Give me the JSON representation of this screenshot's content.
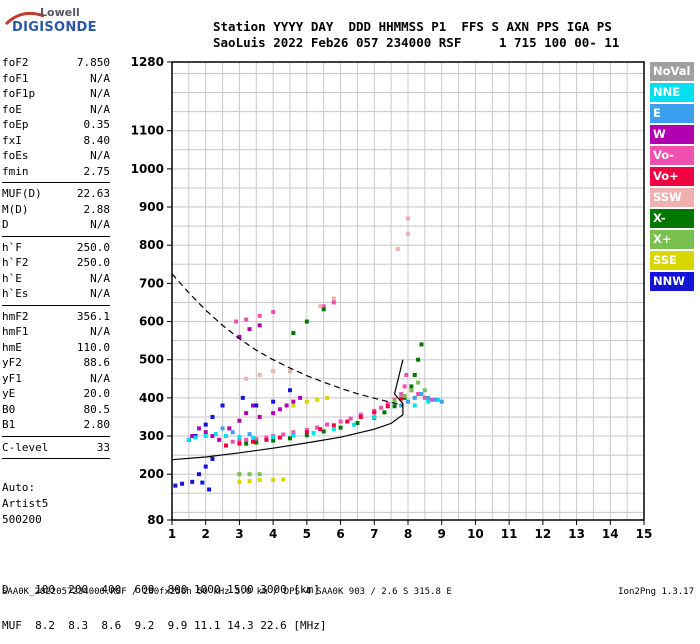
{
  "logo": {
    "top": "Lowell",
    "bottom": "DIGISONDE"
  },
  "header": {
    "line1": "Station YYYY DAY  DDD HHMMSS P1  FFS S AXN PPS IGA PS",
    "line2": "SaoLuis 2022 Feb26 057 234000 RSF     1 715 100 00- 11"
  },
  "params": {
    "group1": [
      {
        "name": "foF2",
        "value": "7.850"
      },
      {
        "name": "foF1",
        "value": "N/A"
      },
      {
        "name": "foF1p",
        "value": "N/A"
      },
      {
        "name": "foE",
        "value": "N/A"
      },
      {
        "name": "foEp",
        "value": "0.35"
      },
      {
        "name": "fxI",
        "value": "8.40"
      },
      {
        "name": "foEs",
        "value": "N/A"
      },
      {
        "name": "fmin",
        "value": "2.75"
      }
    ],
    "group2": [
      {
        "name": "MUF(D)",
        "value": "22.63"
      },
      {
        "name": "M(D)",
        "value": "2.88"
      },
      {
        "name": "D",
        "value": "N/A"
      }
    ],
    "group3": [
      {
        "name": "h`F",
        "value": "250.0"
      },
      {
        "name": "h`F2",
        "value": "250.0"
      },
      {
        "name": "h`E",
        "value": "N/A"
      },
      {
        "name": "h`Es",
        "value": "N/A"
      }
    ],
    "group4": [
      {
        "name": "hmF2",
        "value": "356.1"
      },
      {
        "name": "hmF1",
        "value": "N/A"
      },
      {
        "name": "hmE",
        "value": "110.0"
      },
      {
        "name": "yF2",
        "value": "88.6"
      },
      {
        "name": "yF1",
        "value": "N/A"
      },
      {
        "name": "yE",
        "value": "20.0"
      },
      {
        "name": "B0",
        "value": "80.5"
      },
      {
        "name": "B1",
        "value": "2.80"
      }
    ],
    "group5": [
      {
        "name": "C-level",
        "value": "33"
      }
    ]
  },
  "auto": {
    "line1": "Auto:",
    "line2": "Artist5",
    "line3": "500200"
  },
  "legend": [
    {
      "label": "NoVal",
      "color": "#a0a0a0"
    },
    {
      "label": "NNE",
      "color": "#00e0f0"
    },
    {
      "label": "E",
      "color": "#3ca0f0"
    },
    {
      "label": "W",
      "color": "#b000b0"
    },
    {
      "label": "Vo-",
      "color": "#f050b0"
    },
    {
      "label": "Vo+",
      "color": "#f00040"
    },
    {
      "label": "SSW",
      "color": "#f0b0b0"
    },
    {
      "label": "X-",
      "color": "#007800"
    },
    {
      "label": "X+",
      "color": "#78c050"
    },
    {
      "label": "SSE",
      "color": "#d8d800"
    },
    {
      "label": "NNW",
      "color": "#1414d8"
    }
  ],
  "dmuf": {
    "line1": "D    100  200  400  600  800 1000 1500 3000 [km]",
    "line2": "MUF  8.2  8.3  8.6  9.2  9.9 11.1 14.3 22.6 [MHz]"
  },
  "footer": "SAA0K_2022057234000.RSF / 280fx256h 50 kHz 5.0 km / DPS-4 SAA0K 903 / 2.6 S 315.8 E",
  "version": "Ion2Png 1.3.17",
  "chart_data": {
    "type": "scatter",
    "xlim": [
      1,
      15
    ],
    "ylim": [
      80,
      1280
    ],
    "xticks": [
      1,
      2,
      3,
      4,
      5,
      6,
      7,
      8,
      9,
      10,
      11,
      12,
      13,
      14,
      15
    ],
    "yticks": [
      80,
      200,
      300,
      400,
      500,
      600,
      700,
      800,
      900,
      1000,
      1100,
      1280
    ],
    "grid": true,
    "xlabel": "",
    "ylabel": "",
    "series": [
      {
        "name": "Vo-",
        "points": [
          [
            2.8,
            285
          ],
          [
            3.0,
            288
          ],
          [
            3.2,
            290
          ],
          [
            3.5,
            292
          ],
          [
            3.8,
            296
          ],
          [
            4.0,
            300
          ],
          [
            4.3,
            304
          ],
          [
            4.6,
            310
          ],
          [
            5.0,
            316
          ],
          [
            5.3,
            322
          ],
          [
            5.6,
            330
          ],
          [
            6.0,
            338
          ],
          [
            6.3,
            346
          ],
          [
            6.6,
            356
          ],
          [
            7.0,
            366
          ],
          [
            7.2,
            374
          ],
          [
            7.4,
            384
          ],
          [
            7.6,
            396
          ],
          [
            7.8,
            410
          ],
          [
            7.9,
            430
          ],
          [
            7.95,
            460
          ],
          [
            8.1,
            420
          ],
          [
            8.3,
            410
          ],
          [
            8.5,
            400
          ],
          [
            8.7,
            395
          ],
          [
            2.9,
            600
          ],
          [
            3.2,
            605
          ],
          [
            3.6,
            615
          ],
          [
            4.0,
            625
          ],
          [
            5.5,
            640
          ],
          [
            5.8,
            650
          ]
        ]
      },
      {
        "name": "X-",
        "points": [
          [
            3.2,
            280
          ],
          [
            3.5,
            283
          ],
          [
            4.0,
            288
          ],
          [
            4.5,
            294
          ],
          [
            5.0,
            302
          ],
          [
            5.5,
            312
          ],
          [
            6.0,
            322
          ],
          [
            6.5,
            334
          ],
          [
            7.0,
            348
          ],
          [
            7.3,
            362
          ],
          [
            7.6,
            378
          ],
          [
            7.9,
            400
          ],
          [
            8.1,
            430
          ],
          [
            8.2,
            460
          ],
          [
            8.3,
            500
          ],
          [
            8.4,
            540
          ],
          [
            4.6,
            570
          ],
          [
            5.0,
            600
          ],
          [
            5.5,
            632
          ]
        ]
      },
      {
        "name": "Vo+",
        "points": [
          [
            2.6,
            275
          ],
          [
            3.0,
            280
          ],
          [
            3.4,
            285
          ],
          [
            3.8,
            290
          ],
          [
            4.2,
            296
          ],
          [
            4.6,
            302
          ],
          [
            5.0,
            310
          ],
          [
            5.4,
            318
          ],
          [
            5.8,
            328
          ],
          [
            6.2,
            338
          ],
          [
            6.6,
            350
          ],
          [
            7.0,
            362
          ],
          [
            7.4,
            378
          ],
          [
            7.8,
            398
          ]
        ]
      },
      {
        "name": "W",
        "points": [
          [
            1.6,
            300
          ],
          [
            1.8,
            320
          ],
          [
            2.0,
            310
          ],
          [
            2.2,
            300
          ],
          [
            2.4,
            290
          ],
          [
            2.7,
            320
          ],
          [
            3.0,
            340
          ],
          [
            3.2,
            360
          ],
          [
            3.4,
            380
          ],
          [
            3.6,
            350
          ],
          [
            4.0,
            360
          ],
          [
            4.2,
            370
          ],
          [
            4.4,
            380
          ],
          [
            4.6,
            390
          ],
          [
            4.8,
            400
          ],
          [
            3.0,
            560
          ],
          [
            3.3,
            580
          ],
          [
            3.6,
            590
          ]
        ]
      },
      {
        "name": "NNW",
        "points": [
          [
            1.1,
            170
          ],
          [
            1.3,
            175
          ],
          [
            1.6,
            180
          ],
          [
            1.9,
            178
          ],
          [
            2.1,
            160
          ],
          [
            1.8,
            200
          ],
          [
            2.0,
            220
          ],
          [
            2.2,
            240
          ],
          [
            1.5,
            290
          ],
          [
            1.7,
            300
          ],
          [
            2.0,
            330
          ],
          [
            2.2,
            350
          ],
          [
            2.5,
            380
          ],
          [
            3.1,
            400
          ],
          [
            3.5,
            380
          ],
          [
            4.0,
            390
          ],
          [
            4.5,
            420
          ]
        ]
      },
      {
        "name": "NNE",
        "points": [
          [
            1.5,
            290
          ],
          [
            1.7,
            296
          ],
          [
            2.0,
            300
          ],
          [
            2.3,
            305
          ],
          [
            2.6,
            300
          ],
          [
            3.0,
            298
          ],
          [
            3.4,
            296
          ],
          [
            4.0,
            298
          ],
          [
            4.6,
            302
          ],
          [
            5.2,
            308
          ],
          [
            5.8,
            318
          ],
          [
            6.4,
            330
          ],
          [
            7.0,
            350
          ],
          [
            8.2,
            380
          ],
          [
            8.6,
            390
          ],
          [
            8.9,
            395
          ]
        ]
      },
      {
        "name": "E",
        "points": [
          [
            7.8,
            380
          ],
          [
            8.0,
            390
          ],
          [
            8.2,
            400
          ],
          [
            8.4,
            410
          ],
          [
            8.6,
            400
          ],
          [
            8.8,
            395
          ],
          [
            9.0,
            390
          ],
          [
            2.5,
            320
          ],
          [
            2.8,
            310
          ],
          [
            3.3,
            305
          ]
        ]
      },
      {
        "name": "X+",
        "points": [
          [
            3.0,
            200
          ],
          [
            3.3,
            200
          ],
          [
            3.6,
            200
          ],
          [
            7.6,
            390
          ],
          [
            7.9,
            405
          ],
          [
            8.1,
            420
          ],
          [
            8.3,
            440
          ],
          [
            8.5,
            420
          ]
        ]
      },
      {
        "name": "SSE",
        "points": [
          [
            3.0,
            180
          ],
          [
            3.3,
            182
          ],
          [
            3.6,
            185
          ],
          [
            4.0,
            185
          ],
          [
            4.3,
            186
          ],
          [
            4.6,
            380
          ],
          [
            5.0,
            390
          ],
          [
            5.3,
            395
          ],
          [
            5.6,
            400
          ]
        ]
      },
      {
        "name": "SSW",
        "points": [
          [
            3.2,
            450
          ],
          [
            3.6,
            460
          ],
          [
            4.0,
            470
          ],
          [
            4.5,
            470
          ],
          [
            8.0,
            830
          ],
          [
            8.0,
            870
          ],
          [
            7.7,
            790
          ],
          [
            5.4,
            640
          ],
          [
            5.8,
            660
          ]
        ]
      }
    ],
    "curves": [
      {
        "name": "profile-solid",
        "points": [
          [
            1.0,
            238
          ],
          [
            2.0,
            245
          ],
          [
            3.0,
            256
          ],
          [
            4.0,
            268
          ],
          [
            5.0,
            282
          ],
          [
            6.0,
            297
          ],
          [
            7.0,
            318
          ],
          [
            7.5,
            333
          ],
          [
            7.85,
            356
          ],
          [
            7.85,
            385
          ],
          [
            7.6,
            410
          ],
          [
            7.85,
            500
          ]
        ]
      },
      {
        "name": "profile-dashed",
        "points": [
          [
            1.0,
            725
          ],
          [
            1.5,
            675
          ],
          [
            2.0,
            630
          ],
          [
            2.5,
            590
          ],
          [
            3.0,
            555
          ],
          [
            3.5,
            525
          ],
          [
            4.0,
            500
          ],
          [
            4.5,
            478
          ],
          [
            5.0,
            458
          ],
          [
            5.5,
            441
          ],
          [
            6.0,
            425
          ],
          [
            6.5,
            411
          ],
          [
            7.0,
            399
          ],
          [
            7.5,
            388
          ],
          [
            7.85,
            380
          ]
        ]
      }
    ]
  }
}
